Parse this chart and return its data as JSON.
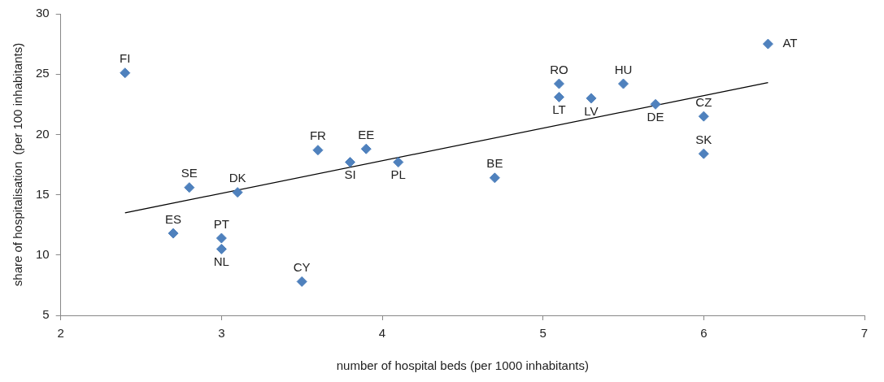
{
  "chart_data": {
    "type": "scatter",
    "xlabel": "number of hospital beds (per 1000 inhabitants)",
    "ylabel": "share of hospitalisation  (per 100 inhabitants)",
    "xlim": [
      2,
      7
    ],
    "xticks": [
      2,
      3,
      4,
      5,
      6,
      7
    ],
    "ylim": [
      5,
      30
    ],
    "yticks": [
      5,
      10,
      15,
      20,
      25,
      30
    ],
    "grid": false,
    "legend": false,
    "marker": "diamond",
    "series": [
      {
        "color": "#4f81bd",
        "x": [
          2.4,
          6.4,
          5.1,
          5.1,
          5.3,
          5.5,
          5.7,
          6.0,
          6.0,
          4.7,
          4.1,
          3.9,
          3.6,
          3.8,
          3.1,
          2.8,
          2.7,
          3.0,
          3.0,
          3.5
        ],
        "values": [
          25.1,
          27.5,
          24.2,
          23.1,
          23.0,
          24.2,
          22.5,
          21.5,
          18.4,
          16.4,
          17.7,
          18.8,
          18.7,
          17.7,
          15.2,
          15.6,
          11.8,
          11.4,
          10.5,
          7.8
        ]
      },
      {
        "type": "line",
        "color": "#000000",
        "marker": "none",
        "x": [
          2.4,
          6.4
        ],
        "values": [
          13.5,
          24.3
        ]
      }
    ],
    "annotations": [
      {
        "text": "FI",
        "x": 2.4,
        "y": 25.1
      },
      {
        "text": "AT",
        "x": 6.4,
        "y": 27.5
      },
      {
        "text": "RO",
        "x": 5.1,
        "y": 24.2
      },
      {
        "text": "LT",
        "x": 5.1,
        "y": 23.1
      },
      {
        "text": "LV",
        "x": 5.3,
        "y": 23.0
      },
      {
        "text": "HU",
        "x": 5.5,
        "y": 24.2
      },
      {
        "text": "DE",
        "x": 5.7,
        "y": 22.5
      },
      {
        "text": "CZ",
        "x": 6.0,
        "y": 21.5
      },
      {
        "text": "SK",
        "x": 6.0,
        "y": 18.4
      },
      {
        "text": "BE",
        "x": 4.7,
        "y": 16.4
      },
      {
        "text": "PL",
        "x": 4.1,
        "y": 17.7
      },
      {
        "text": "EE",
        "x": 3.9,
        "y": 18.8
      },
      {
        "text": "FR",
        "x": 3.6,
        "y": 18.7
      },
      {
        "text": "SI",
        "x": 3.8,
        "y": 17.7
      },
      {
        "text": "DK",
        "x": 3.1,
        "y": 15.2
      },
      {
        "text": "SE",
        "x": 2.8,
        "y": 15.6
      },
      {
        "text": "ES",
        "x": 2.7,
        "y": 11.8
      },
      {
        "text": "PT",
        "x": 3.0,
        "y": 11.4
      },
      {
        "text": "NL",
        "x": 3.0,
        "y": 10.5
      },
      {
        "text": "CY",
        "x": 3.5,
        "y": 7.8
      }
    ]
  }
}
